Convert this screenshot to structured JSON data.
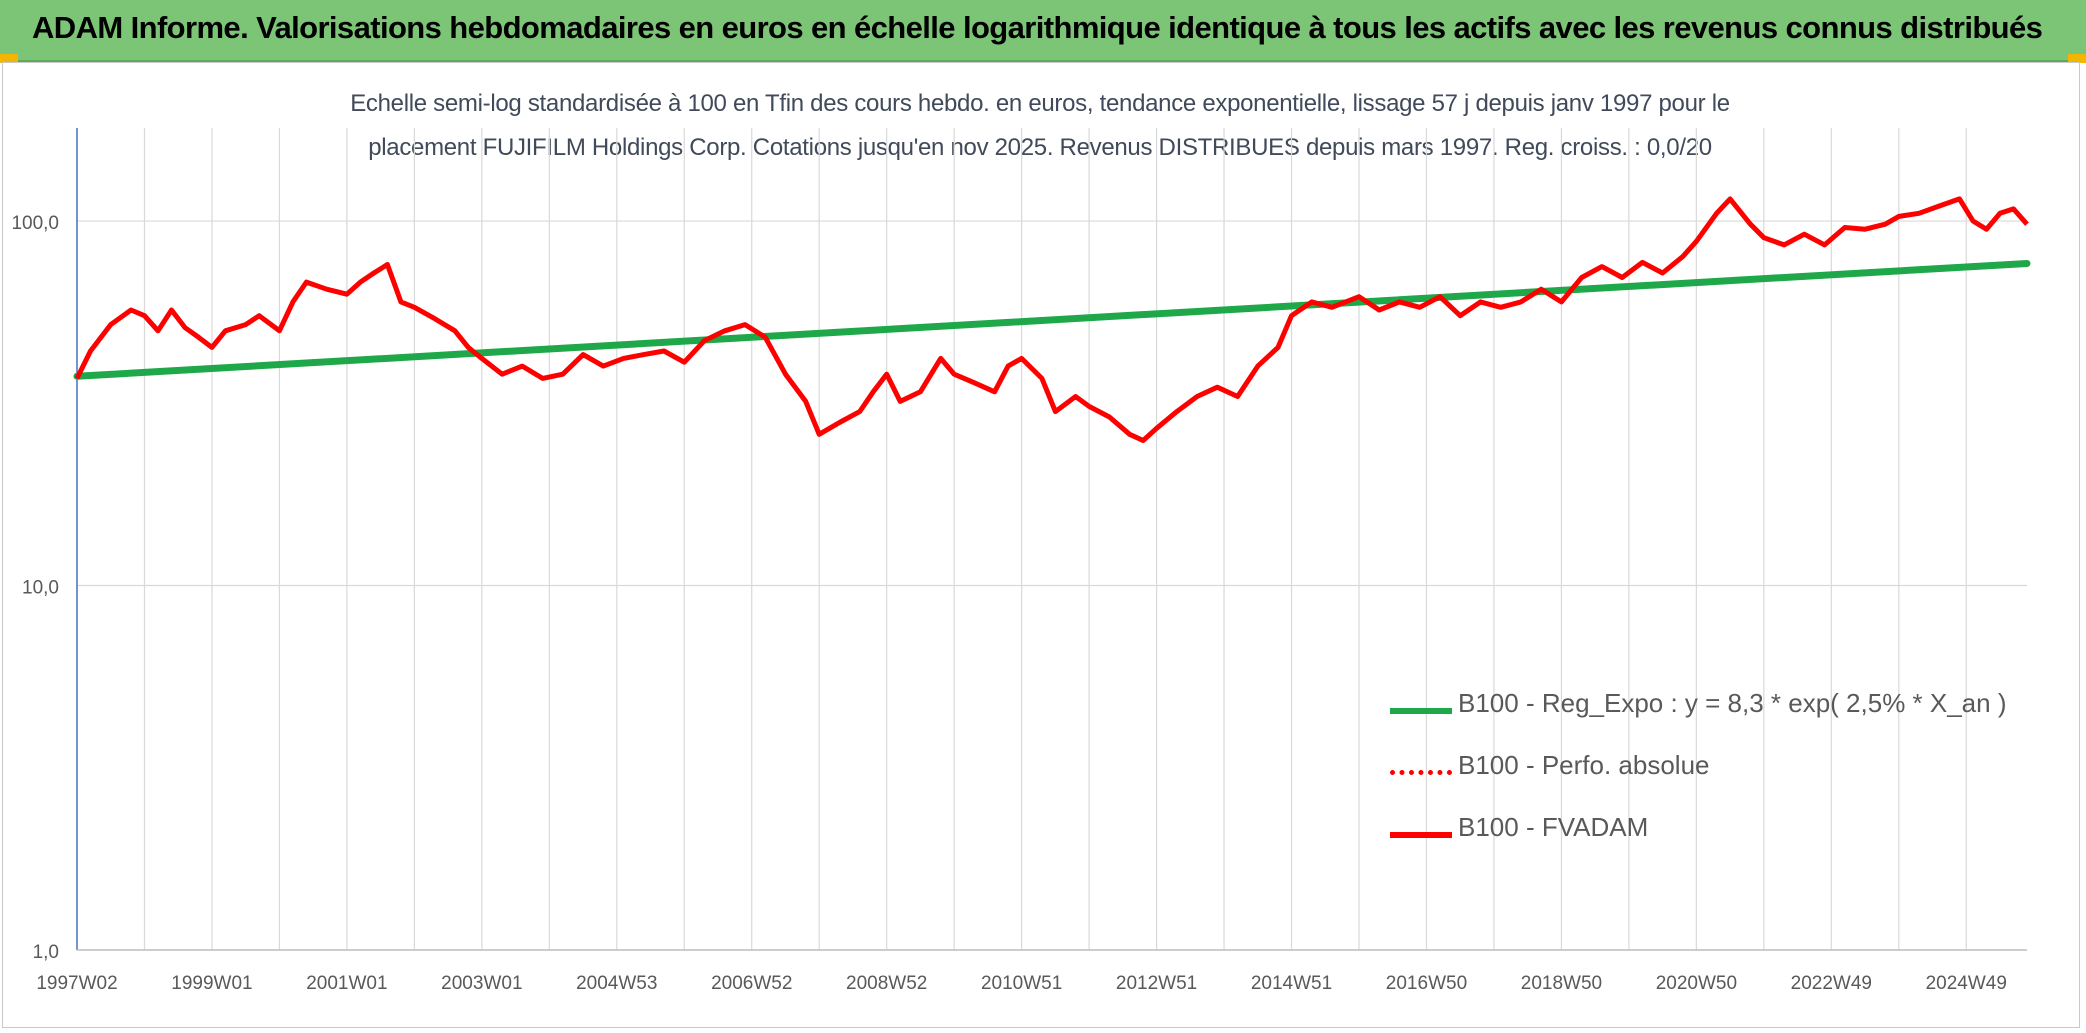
{
  "header": {
    "title": "ADAM Informe. Valorisations hebdomadaires en euros en échelle logarithmique identique à tous les actifs avec les revenus connus distribués"
  },
  "colors": {
    "banner": "#7cc576",
    "corner_accent": "#f2b600",
    "regression_line": "#1fa84a",
    "fvadam_line": "#ff0000",
    "grid": "#d9d9d9",
    "axis": "#4472c4"
  },
  "chart_data": {
    "type": "line",
    "title_line1": "Echelle semi-log standardisée à 100 en Tfin des cours hebdo. en euros, tendance exponentielle, lissage 57 j depuis janv 1997 pour le",
    "title_line2": "placement FUJIFILM Holdings Corp. Cotations jusqu'en nov 2025. Revenus DISTRIBUES depuis mars 1997. Reg. croiss. : 0,0/20",
    "y_scale": "log",
    "ylim": [
      1,
      180
    ],
    "y_ticks": [
      {
        "value": 1,
        "label": "1,0"
      },
      {
        "value": 10,
        "label": "10,0"
      },
      {
        "value": 100,
        "label": "100,0"
      }
    ],
    "xlim": [
      1997.0,
      2025.9
    ],
    "x_ticks": [
      {
        "value": 1997.0,
        "label": "1997W02"
      },
      {
        "value": 1999.0,
        "label": "1999W01"
      },
      {
        "value": 2001.0,
        "label": "2001W01"
      },
      {
        "value": 2003.0,
        "label": "2003W01"
      },
      {
        "value": 2005.0,
        "label": "2004W53"
      },
      {
        "value": 2007.0,
        "label": "2006W52"
      },
      {
        "value": 2009.0,
        "label": "2008W52"
      },
      {
        "value": 2011.0,
        "label": "2010W51"
      },
      {
        "value": 2013.0,
        "label": "2012W51"
      },
      {
        "value": 2015.0,
        "label": "2014W51"
      },
      {
        "value": 2017.0,
        "label": "2016W50"
      },
      {
        "value": 2019.0,
        "label": "2018W50"
      },
      {
        "value": 2021.0,
        "label": "2020W50"
      },
      {
        "value": 2023.0,
        "label": "2022W49"
      },
      {
        "value": 2025.0,
        "label": "2024W49"
      }
    ],
    "legend_position": "right",
    "series": [
      {
        "name": "B100 - Reg_Expo : y = 8,3 * exp( 2,5% *  X_an )",
        "style": "solid-green",
        "x": [
          1997.0,
          2025.9
        ],
        "values": [
          37.5,
          76.5
        ]
      },
      {
        "name": "B100 - Perfo. absolue",
        "style": "dotted-red",
        "x": [],
        "values": []
      },
      {
        "name": "B100 - FVADAM",
        "style": "solid-red",
        "x": [
          1997.0,
          1997.2,
          1997.5,
          1997.8,
          1998.0,
          1998.2,
          1998.4,
          1998.6,
          1998.8,
          1999.0,
          1999.2,
          1999.5,
          1999.7,
          2000.0,
          2000.2,
          2000.4,
          2000.7,
          2001.0,
          2001.2,
          2001.4,
          2001.6,
          2001.8,
          2002.0,
          2002.3,
          2002.6,
          2002.8,
          2003.0,
          2003.3,
          2003.6,
          2003.9,
          2004.2,
          2004.5,
          2004.8,
          2005.1,
          2005.4,
          2005.7,
          2006.0,
          2006.3,
          2006.6,
          2006.9,
          2007.2,
          2007.5,
          2007.8,
          2008.0,
          2008.3,
          2008.6,
          2008.8,
          2009.0,
          2009.2,
          2009.5,
          2009.8,
          2010.0,
          2010.3,
          2010.6,
          2010.8,
          2011.0,
          2011.3,
          2011.5,
          2011.8,
          2012.0,
          2012.3,
          2012.6,
          2012.8,
          2013.0,
          2013.3,
          2013.6,
          2013.9,
          2014.2,
          2014.5,
          2014.8,
          2015.0,
          2015.3,
          2015.6,
          2016.0,
          2016.3,
          2016.6,
          2016.9,
          2017.2,
          2017.5,
          2017.8,
          2018.1,
          2018.4,
          2018.7,
          2019.0,
          2019.3,
          2019.6,
          2019.9,
          2020.2,
          2020.5,
          2020.8,
          2021.0,
          2021.3,
          2021.5,
          2021.8,
          2022.0,
          2022.3,
          2022.6,
          2022.9,
          2023.2,
          2023.5,
          2023.8,
          2024.0,
          2024.3,
          2024.6,
          2024.9,
          2025.1,
          2025.3,
          2025.5,
          2025.7,
          2025.9
        ],
        "values": [
          37,
          44,
          52,
          57,
          55,
          50,
          57,
          51,
          48,
          45,
          50,
          52,
          55,
          50,
          60,
          68,
          65,
          63,
          68,
          72,
          76,
          60,
          58,
          54,
          50,
          45,
          42,
          38,
          40,
          37,
          38,
          43,
          40,
          42,
          43,
          44,
          41,
          47,
          50,
          52,
          48,
          38,
          32,
          26,
          28,
          30,
          34,
          38,
          32,
          34,
          42,
          38,
          36,
          34,
          40,
          42,
          37,
          30,
          33,
          31,
          29,
          26,
          25,
          27,
          30,
          33,
          35,
          33,
          40,
          45,
          55,
          60,
          58,
          62,
          57,
          60,
          58,
          62,
          55,
          60,
          58,
          60,
          65,
          60,
          70,
          75,
          70,
          77,
          72,
          80,
          88,
          105,
          115,
          98,
          90,
          86,
          92,
          86,
          96,
          95,
          98,
          103,
          105,
          110,
          115,
          100,
          95,
          105,
          108,
          98
        ]
      }
    ]
  }
}
